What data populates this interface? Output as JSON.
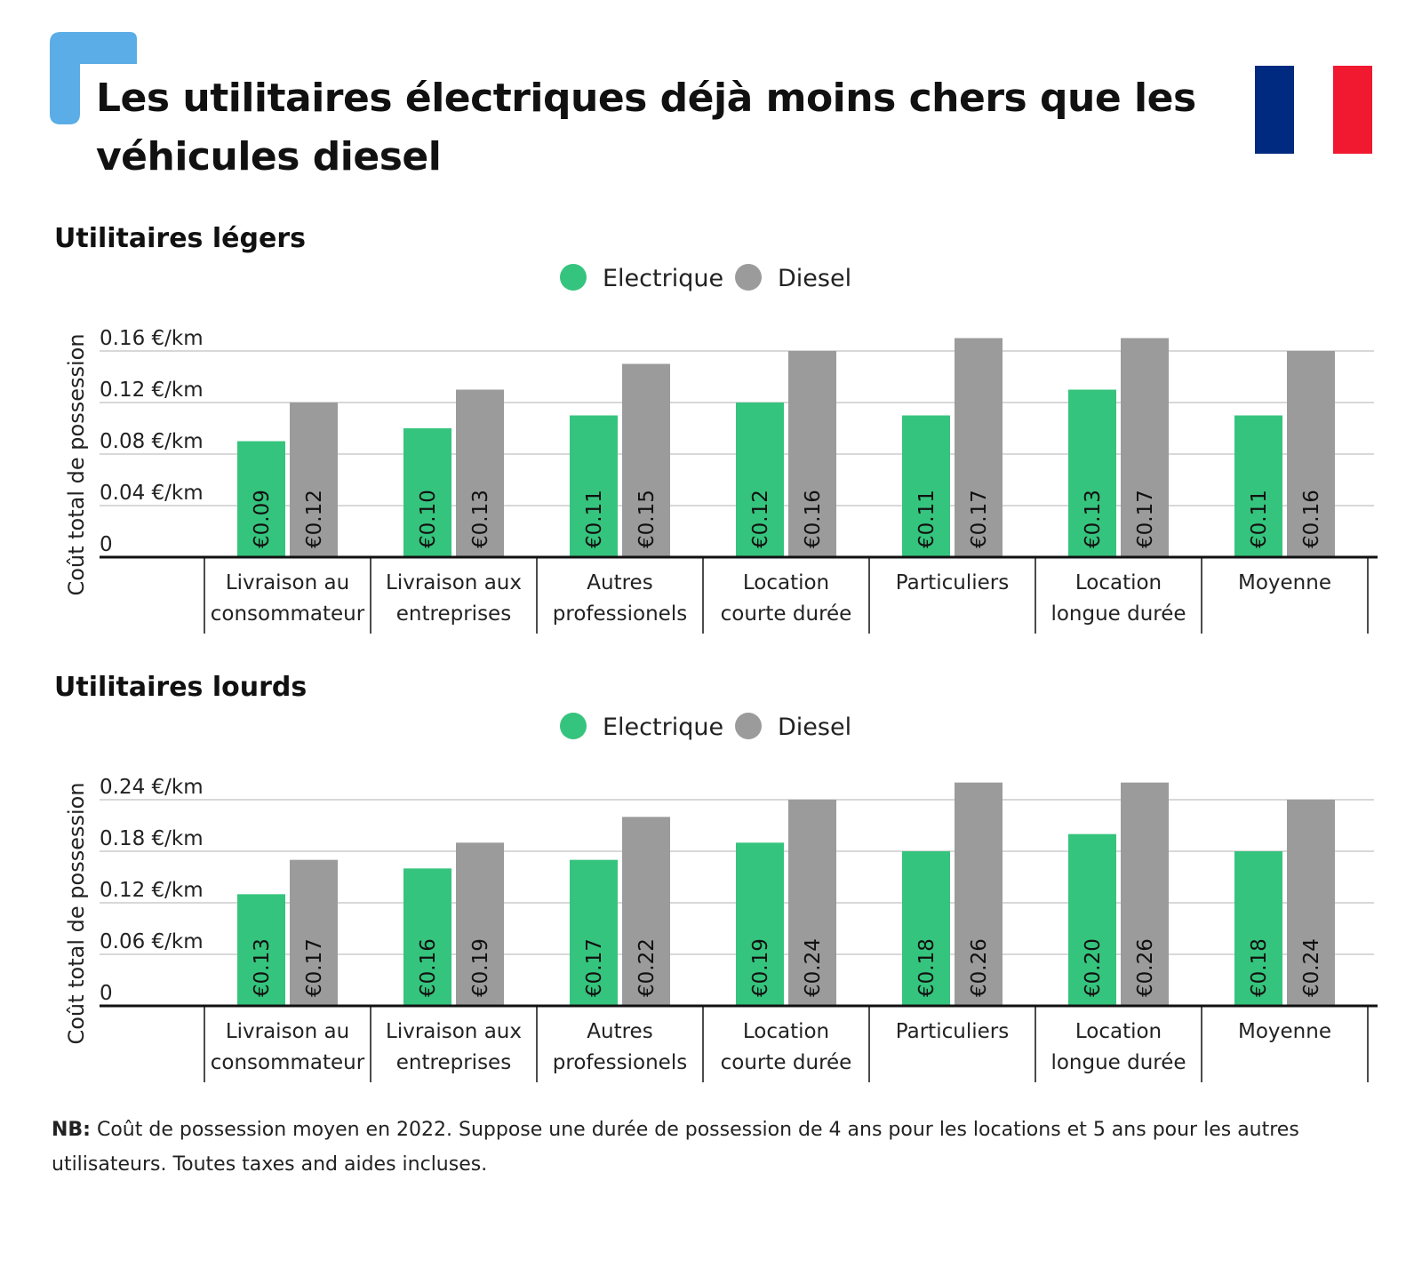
{
  "title": "Les utilitaires électriques déjà moins chers que les véhicules diesel",
  "colors": {
    "electric": "#35c47d",
    "diesel": "#9b9b9b",
    "accent": "#5aade6",
    "flag_blue": "#002a7f",
    "flag_white": "#ffffff",
    "flag_red": "#f0192f"
  },
  "footnote": {
    "label": "NB:",
    "text": " Coût de possession moyen en 2022. Suppose une durée de possession de 4 ans pour les locations et 5 ans pour les autres utilisateurs. Toutes taxes and aides incluses."
  },
  "chart_data": [
    {
      "type": "bar",
      "title": "Utilitaires légers",
      "ylabel": "Coût total de possession",
      "ylim": [
        0,
        0.16
      ],
      "yticks": [
        {
          "value": 0,
          "label": "0"
        },
        {
          "value": 0.04,
          "label": "0.04 €/km"
        },
        {
          "value": 0.08,
          "label": "0.08 €/km"
        },
        {
          "value": 0.12,
          "label": "0.12 €/km"
        },
        {
          "value": 0.16,
          "label": "0.16 €/km"
        }
      ],
      "categories": [
        [
          "Livraison au",
          "consommateur"
        ],
        [
          "Livraison aux",
          "entreprises"
        ],
        [
          "Autres",
          "professionels"
        ],
        [
          "Location",
          "courte durée"
        ],
        [
          "Particuliers"
        ],
        [
          "Location",
          "longue durée"
        ],
        [
          "Moyenne"
        ]
      ],
      "series": [
        {
          "name": "Electrique",
          "values": [
            0.09,
            0.1,
            0.11,
            0.12,
            0.11,
            0.13,
            0.11
          ],
          "labels": [
            "€0.09",
            "€0.10",
            "€0.11",
            "€0.12",
            "€0.11",
            "€0.13",
            "€0.11"
          ]
        },
        {
          "name": "Diesel",
          "values": [
            0.12,
            0.13,
            0.15,
            0.16,
            0.17,
            0.17,
            0.16
          ],
          "labels": [
            "€0.12",
            "€0.13",
            "€0.15",
            "€0.16",
            "€0.17",
            "€0.17",
            "€0.16"
          ]
        }
      ],
      "legend": "top-center"
    },
    {
      "type": "bar",
      "title": "Utilitaires lourds",
      "ylabel": "Coût total de possession",
      "ylim": [
        0,
        0.24
      ],
      "yticks": [
        {
          "value": 0,
          "label": "0"
        },
        {
          "value": 0.06,
          "label": "0.06 €/km"
        },
        {
          "value": 0.12,
          "label": "0.12 €/km"
        },
        {
          "value": 0.18,
          "label": "0.18 €/km"
        },
        {
          "value": 0.24,
          "label": "0.24 €/km"
        }
      ],
      "categories": [
        [
          "Livraison au",
          "consommateur"
        ],
        [
          "Livraison aux",
          "entreprises"
        ],
        [
          "Autres",
          "professionels"
        ],
        [
          "Location",
          "courte durée"
        ],
        [
          "Particuliers"
        ],
        [
          "Location",
          "longue durée"
        ],
        [
          "Moyenne"
        ]
      ],
      "series": [
        {
          "name": "Electrique",
          "values": [
            0.13,
            0.16,
            0.17,
            0.19,
            0.18,
            0.2,
            0.18
          ],
          "labels": [
            "€0.13",
            "€0.16",
            "€0.17",
            "€0.19",
            "€0.18",
            "€0.20",
            "€0.18"
          ]
        },
        {
          "name": "Diesel",
          "values": [
            0.17,
            0.19,
            0.22,
            0.24,
            0.26,
            0.26,
            0.24
          ],
          "labels": [
            "€0.17",
            "€0.19",
            "€0.22",
            "€0.24",
            "€0.26",
            "€0.26",
            "€0.24"
          ]
        }
      ],
      "legend": "top-center"
    }
  ]
}
